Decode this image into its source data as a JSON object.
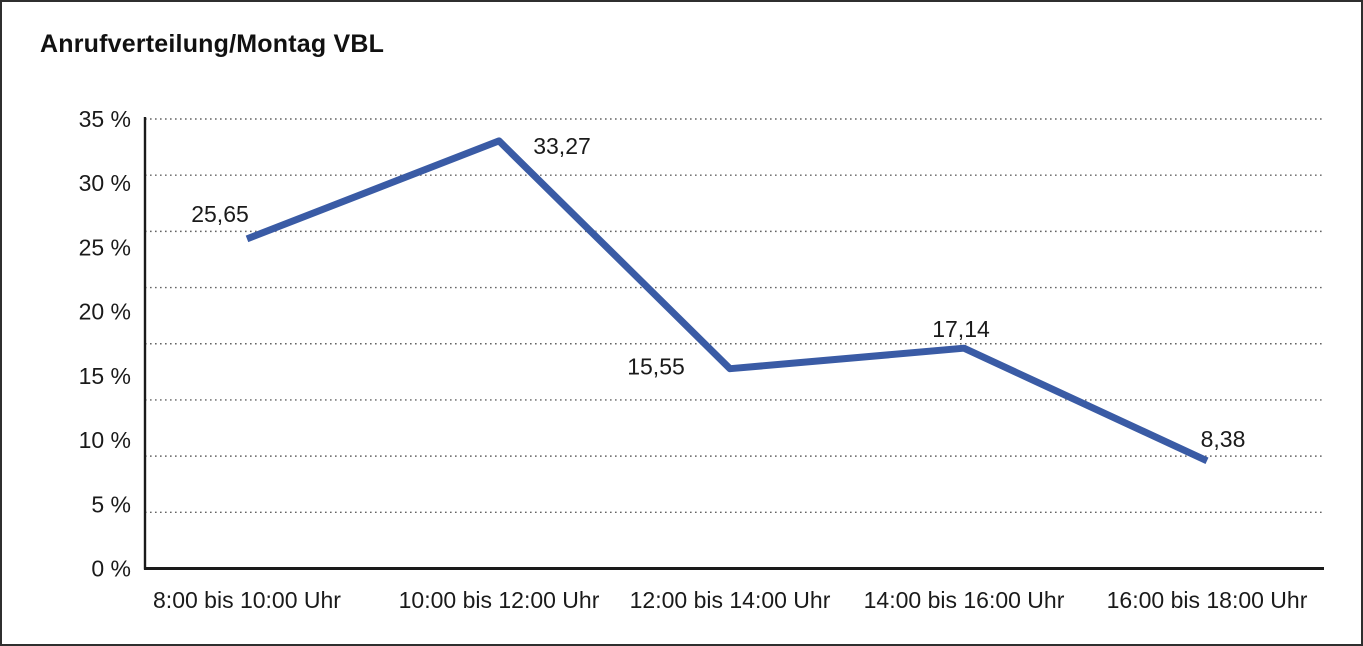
{
  "chart_data": {
    "type": "line",
    "title": "Anrufverteilung/Montag VBL",
    "categories": [
      "8:00 bis 10:00 Uhr",
      "10:00 bis 12:00 Uhr",
      "12:00 bis 14:00 Uhr",
      "14:00 bis 16:00 Uhr",
      "16:00 bis 18:00 Uhr"
    ],
    "values": [
      25.65,
      33.27,
      15.55,
      17.14,
      8.38
    ],
    "point_labels": [
      "25,65",
      "33,27",
      "15,55",
      "17,14",
      "8,38"
    ],
    "y_tick_labels": [
      "35 %",
      "30 %",
      "25 %",
      "20 %",
      "15 %",
      "10 %",
      "5 %",
      "0 %"
    ],
    "xlabel": "",
    "ylabel": "",
    "ylim": [
      0,
      35
    ],
    "grid": "horizontal-dotted",
    "legend": "none",
    "line_color": "#3A5BA5",
    "axis_color": "#1a1a1a",
    "grid_color": "#4a4a4a",
    "text_color": "#1a1a1a"
  }
}
